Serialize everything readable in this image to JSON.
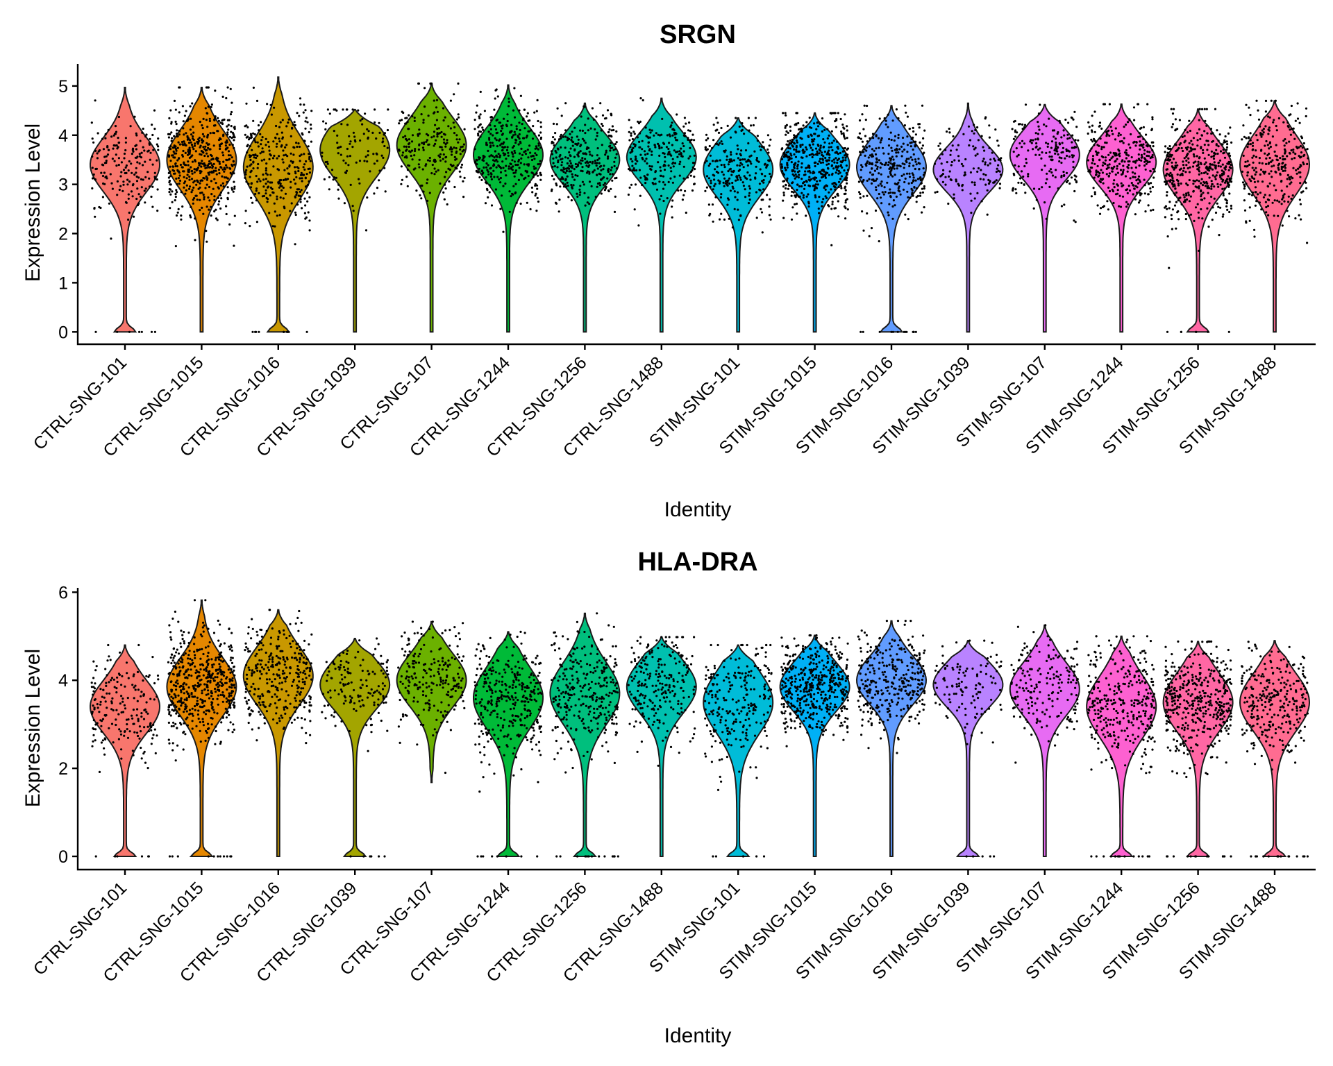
{
  "chart_data": [
    {
      "type": "violin",
      "title": "SRGN",
      "xlabel": "Identity",
      "ylabel": "Expression Level",
      "ylim": [
        -0.25,
        5.45
      ],
      "yticks": [
        0,
        1,
        2,
        3,
        4,
        5
      ],
      "categories": [
        "CTRL-SNG-101",
        "CTRL-SNG-1015",
        "CTRL-SNG-1016",
        "CTRL-SNG-1039",
        "CTRL-SNG-107",
        "CTRL-SNG-1244",
        "CTRL-SNG-1256",
        "CTRL-SNG-1488",
        "STIM-SNG-101",
        "STIM-SNG-1015",
        "STIM-SNG-1016",
        "STIM-SNG-1039",
        "STIM-SNG-107",
        "STIM-SNG-1244",
        "STIM-SNG-1256",
        "STIM-SNG-1488"
      ],
      "colors": [
        "#F8766D",
        "#E58700",
        "#C99800",
        "#A3A500",
        "#6BB100",
        "#00BA38",
        "#00BF7D",
        "#00C0AF",
        "#00BCD8",
        "#00B0F6",
        "#619CFF",
        "#B983FF",
        "#E76BF3",
        "#FD61D1",
        "#FF67A4",
        "#FF6C91"
      ],
      "violins": [
        {
          "min": 0,
          "max": 4.97,
          "center": 3.4,
          "spread": 0.55,
          "zero_lobe": true,
          "n": 200
        },
        {
          "min": 0,
          "max": 4.97,
          "center": 3.5,
          "spread": 0.6,
          "zero_lobe": false,
          "n": 500
        },
        {
          "min": 0,
          "max": 5.18,
          "center": 3.35,
          "spread": 0.65,
          "zero_lobe": true,
          "n": 320
        },
        {
          "min": 0,
          "max": 4.52,
          "center": 3.7,
          "spread": 0.55,
          "zero_lobe": false,
          "n": 110
        },
        {
          "min": 0,
          "max": 5.05,
          "center": 3.8,
          "spread": 0.55,
          "zero_lobe": false,
          "n": 220
        },
        {
          "min": 0,
          "max": 5.02,
          "center": 3.6,
          "spread": 0.55,
          "zero_lobe": false,
          "n": 350
        },
        {
          "min": 0,
          "max": 4.65,
          "center": 3.5,
          "spread": 0.5,
          "zero_lobe": false,
          "n": 300
        },
        {
          "min": 0,
          "max": 4.75,
          "center": 3.55,
          "spread": 0.5,
          "zero_lobe": false,
          "n": 240
        },
        {
          "min": 0,
          "max": 4.35,
          "center": 3.3,
          "spread": 0.55,
          "zero_lobe": false,
          "n": 250
        },
        {
          "min": 0,
          "max": 4.45,
          "center": 3.4,
          "spread": 0.5,
          "zero_lobe": false,
          "n": 480
        },
        {
          "min": 0,
          "max": 4.6,
          "center": 3.35,
          "spread": 0.55,
          "zero_lobe": true,
          "n": 330
        },
        {
          "min": 0,
          "max": 4.65,
          "center": 3.3,
          "spread": 0.45,
          "zero_lobe": false,
          "n": 130
        },
        {
          "min": 0,
          "max": 4.62,
          "center": 3.6,
          "spread": 0.5,
          "zero_lobe": false,
          "n": 190
        },
        {
          "min": 0,
          "max": 4.63,
          "center": 3.45,
          "spread": 0.5,
          "zero_lobe": false,
          "n": 330
        },
        {
          "min": 0,
          "max": 4.53,
          "center": 3.3,
          "spread": 0.55,
          "zero_lobe": true,
          "n": 430
        },
        {
          "min": 0,
          "max": 4.7,
          "center": 3.4,
          "spread": 0.6,
          "zero_lobe": false,
          "n": 300
        }
      ]
    },
    {
      "type": "violin",
      "title": "HLA-DRA",
      "xlabel": "Identity",
      "ylabel": "Expression Level",
      "ylim": [
        -0.3,
        6.1
      ],
      "yticks": [
        0,
        2,
        4,
        6
      ],
      "categories": [
        "CTRL-SNG-101",
        "CTRL-SNG-1015",
        "CTRL-SNG-1016",
        "CTRL-SNG-1039",
        "CTRL-SNG-107",
        "CTRL-SNG-1244",
        "CTRL-SNG-1256",
        "CTRL-SNG-1488",
        "STIM-SNG-101",
        "STIM-SNG-1015",
        "STIM-SNG-1016",
        "STIM-SNG-1039",
        "STIM-SNG-107",
        "STIM-SNG-1244",
        "STIM-SNG-1256",
        "STIM-SNG-1488"
      ],
      "colors": [
        "#F8766D",
        "#E58700",
        "#C99800",
        "#A3A500",
        "#6BB100",
        "#00BA38",
        "#00BF7D",
        "#00C0AF",
        "#00BCD8",
        "#00B0F6",
        "#619CFF",
        "#B983FF",
        "#E76BF3",
        "#FD61D1",
        "#FF67A4",
        "#FF6C91"
      ],
      "violins": [
        {
          "min": 0,
          "max": 4.8,
          "center": 3.4,
          "spread": 0.6,
          "zero_lobe": true,
          "n": 200
        },
        {
          "min": 0,
          "max": 5.82,
          "center": 3.85,
          "spread": 0.65,
          "zero_lobe": true,
          "n": 520
        },
        {
          "min": 0,
          "max": 5.6,
          "center": 4.1,
          "spread": 0.65,
          "zero_lobe": false,
          "n": 320
        },
        {
          "min": 0,
          "max": 4.95,
          "center": 3.9,
          "spread": 0.55,
          "zero_lobe": true,
          "n": 150
        },
        {
          "min": 1.68,
          "max": 5.33,
          "center": 4.0,
          "spread": 0.6,
          "zero_lobe": false,
          "n": 220
        },
        {
          "min": 0,
          "max": 5.1,
          "center": 3.6,
          "spread": 0.7,
          "zero_lobe": true,
          "n": 350
        },
        {
          "min": 0,
          "max": 5.52,
          "center": 3.7,
          "spread": 0.7,
          "zero_lobe": true,
          "n": 320
        },
        {
          "min": 0,
          "max": 4.98,
          "center": 3.85,
          "spread": 0.6,
          "zero_lobe": false,
          "n": 240
        },
        {
          "min": 0,
          "max": 4.8,
          "center": 3.5,
          "spread": 0.7,
          "zero_lobe": true,
          "n": 250
        },
        {
          "min": 0,
          "max": 5.02,
          "center": 3.85,
          "spread": 0.55,
          "zero_lobe": false,
          "n": 480
        },
        {
          "min": 0,
          "max": 5.35,
          "center": 4.0,
          "spread": 0.55,
          "zero_lobe": false,
          "n": 330
        },
        {
          "min": 0,
          "max": 4.9,
          "center": 3.9,
          "spread": 0.5,
          "zero_lobe": true,
          "n": 120
        },
        {
          "min": 0,
          "max": 5.25,
          "center": 3.8,
          "spread": 0.6,
          "zero_lobe": false,
          "n": 190
        },
        {
          "min": 0,
          "max": 5.0,
          "center": 3.4,
          "spread": 0.7,
          "zero_lobe": true,
          "n": 330
        },
        {
          "min": 0,
          "max": 4.88,
          "center": 3.5,
          "spread": 0.65,
          "zero_lobe": true,
          "n": 430
        },
        {
          "min": 0,
          "max": 4.9,
          "center": 3.5,
          "spread": 0.65,
          "zero_lobe": true,
          "n": 300
        }
      ]
    }
  ]
}
